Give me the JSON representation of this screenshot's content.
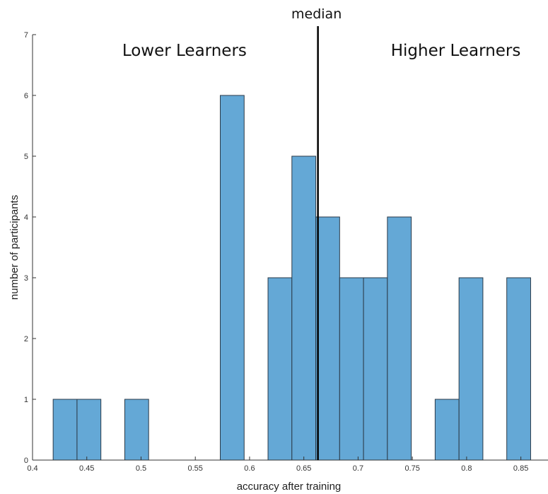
{
  "chart_data": {
    "type": "bar",
    "title": "",
    "xlabel": "accuracy after training",
    "ylabel": "number of participants",
    "xlim": [
      0.4,
      0.875
    ],
    "ylim": [
      0,
      7
    ],
    "grid": false,
    "x_ticks": [
      0.4,
      0.45,
      0.5,
      0.55,
      0.6,
      0.65,
      0.7,
      0.75,
      0.8,
      0.85
    ],
    "x_tick_labels": [
      "0.4",
      "0.45",
      "0.5",
      "0.55",
      "0.6",
      "0.65",
      "0.7",
      "0.75",
      "0.8",
      "0.85"
    ],
    "y_ticks": [
      0,
      1,
      2,
      3,
      4,
      5,
      6,
      7
    ],
    "y_tick_labels": [
      "0",
      "1",
      "2",
      "3",
      "4",
      "5",
      "6",
      "7"
    ],
    "bin_width": 0.022,
    "bins": [
      {
        "start": 0.419,
        "count": 1
      },
      {
        "start": 0.441,
        "count": 1
      },
      {
        "start": 0.485,
        "count": 1
      },
      {
        "start": 0.573,
        "count": 6
      },
      {
        "start": 0.617,
        "count": 3
      },
      {
        "start": 0.639,
        "count": 5
      },
      {
        "start": 0.661,
        "count": 4
      },
      {
        "start": 0.683,
        "count": 3
      },
      {
        "start": 0.705,
        "count": 3
      },
      {
        "start": 0.727,
        "count": 4
      },
      {
        "start": 0.771,
        "count": 1
      },
      {
        "start": 0.793,
        "count": 3
      },
      {
        "start": 0.837,
        "count": 3
      }
    ],
    "median": 0.663,
    "median_label": "median",
    "annotations": [
      "Lower Learners",
      "Higher Learners"
    ],
    "colors": {
      "bar_fill": "#64a8d6",
      "bar_edge": "#2b3a48",
      "median_line": "#000000",
      "axis": "#333333"
    }
  }
}
